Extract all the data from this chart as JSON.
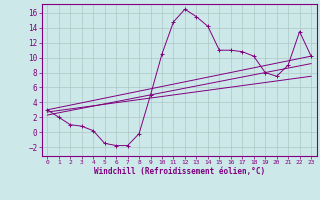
{
  "xlabel": "Windchill (Refroidissement éolien,°C)",
  "background_color": "#cde8e8",
  "line_color": "#800080",
  "grid_color": "#aec8c8",
  "xlim": [
    -0.5,
    23.5
  ],
  "ylim": [
    -3.2,
    17.2
  ],
  "xticks": [
    0,
    1,
    2,
    3,
    4,
    5,
    6,
    7,
    8,
    9,
    10,
    11,
    12,
    13,
    14,
    15,
    16,
    17,
    18,
    19,
    20,
    21,
    22,
    23
  ],
  "yticks": [
    -2,
    0,
    2,
    4,
    6,
    8,
    10,
    12,
    14,
    16
  ],
  "series1_x": [
    0,
    1,
    2,
    3,
    4,
    5,
    6,
    7,
    8,
    9,
    10,
    11,
    12,
    13,
    14,
    15,
    16,
    17,
    18,
    19,
    20,
    21,
    22,
    23
  ],
  "series1_y": [
    3.0,
    2.0,
    1.0,
    0.8,
    0.2,
    -1.5,
    -1.8,
    -1.8,
    -0.2,
    5.0,
    10.5,
    14.8,
    16.5,
    15.5,
    14.2,
    11.0,
    11.0,
    10.8,
    10.2,
    8.0,
    7.5,
    9.0,
    13.5,
    10.2
  ],
  "line2_x": [
    0,
    23
  ],
  "line2_y": [
    3.0,
    10.2
  ],
  "line3_x": [
    0,
    23
  ],
  "line3_y": [
    2.7,
    7.5
  ],
  "line4_x": [
    0,
    23
  ],
  "line4_y": [
    2.3,
    9.2
  ]
}
